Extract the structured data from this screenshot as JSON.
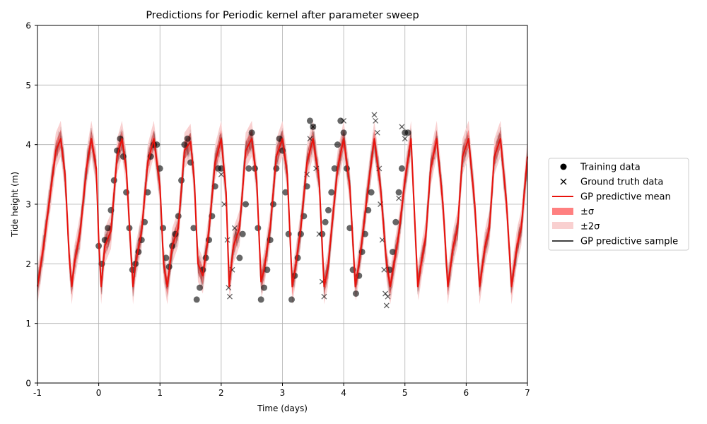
{
  "chart_data": {
    "type": "line",
    "title": "Predictions for Periodic kernel after parameter sweep",
    "xlabel": "Time (days)",
    "ylabel": "Tide height (m)",
    "xlim": [
      -1,
      7
    ],
    "ylim": [
      0,
      6
    ],
    "xticks": [
      -1,
      0,
      1,
      2,
      3,
      4,
      5,
      6,
      7
    ],
    "yticks": [
      0,
      1,
      2,
      3,
      4,
      5,
      6
    ],
    "grid": true,
    "legend_position": "right, outside plot",
    "legend": [
      "Training data",
      "Ground truth data",
      "GP predictive mean",
      "±σ",
      "±2σ",
      "GP predictive sample"
    ],
    "colors": {
      "mean": "#e8120c",
      "sigma1": "#ff8080",
      "sigma2": "#f9d0d0",
      "training": "#000000",
      "ground_truth": "#000000",
      "sample": "#000000",
      "grid": "#b0b0b0"
    },
    "series": [
      {
        "name": "GP predictive mean",
        "style": "line",
        "description": "periodic, period ~0.515 days, peaks 4.1, troughs 1.62",
        "x": [
          -1.0,
          -0.9,
          -0.8,
          -0.7,
          -0.62,
          -0.55,
          -0.48,
          -0.44,
          -0.4,
          -0.3,
          -0.2,
          -0.12,
          -0.04,
          0.0,
          0.04,
          0.1,
          0.2,
          0.3,
          0.38,
          0.45,
          0.52,
          0.56,
          0.6,
          0.7,
          0.8,
          0.9,
          1.0,
          1.06,
          1.12,
          1.2,
          1.3,
          1.4,
          1.5,
          1.56,
          1.62,
          1.7,
          1.8,
          1.9,
          2.0,
          2.08,
          2.13,
          2.2,
          2.3,
          2.4,
          2.5,
          2.58,
          2.65,
          2.7,
          2.8,
          2.9,
          3.0,
          3.08,
          3.16,
          3.22,
          3.3,
          3.4,
          3.5,
          3.6,
          3.68,
          3.74,
          3.8,
          3.9,
          4.0,
          4.1,
          4.19,
          4.25,
          4.3,
          4.4,
          4.5,
          4.6,
          4.7,
          4.76,
          4.82,
          4.9,
          5.0,
          5.1,
          5.21,
          5.28,
          5.34,
          5.42,
          5.52,
          5.62,
          5.7,
          5.79,
          5.86,
          5.94,
          6.04,
          6.14,
          6.22,
          6.31,
          6.38,
          6.46,
          6.56,
          6.66,
          6.74,
          6.83,
          6.9,
          7.0
        ],
        "y": [
          1.62,
          2.3,
          3.1,
          3.9,
          4.1,
          3.5,
          2.1,
          1.62,
          2.0,
          2.55,
          3.6,
          4.1,
          3.6,
          2.4,
          1.62,
          2.3,
          2.55,
          3.8,
          4.1,
          3.6,
          2.3,
          1.62,
          2.0,
          2.55,
          3.7,
          4.1,
          3.3,
          2.0,
          1.62,
          2.3,
          2.6,
          3.9,
          4.05,
          3.4,
          2.0,
          1.8,
          2.55,
          3.7,
          4.1,
          3.2,
          1.62,
          2.3,
          2.6,
          3.9,
          4.1,
          3.4,
          1.7,
          1.9,
          2.6,
          3.8,
          4.1,
          3.5,
          1.62,
          2.0,
          2.6,
          3.7,
          4.1,
          3.4,
          1.62,
          1.9,
          2.55,
          3.6,
          4.1,
          3.3,
          1.62,
          2.0,
          2.4,
          3.3,
          4.1,
          3.3,
          2.0,
          1.62,
          2.0,
          2.5,
          3.4,
          4.1,
          1.62,
          2.1,
          2.45,
          3.6,
          4.1,
          3.0,
          1.62,
          2.3,
          2.6,
          3.8,
          4.1,
          3.0,
          1.62,
          2.3,
          2.6,
          3.8,
          4.1,
          3.0,
          1.62,
          2.3,
          2.6,
          3.8
        ]
      },
      {
        "name": "Training data",
        "style": "marker-circle",
        "description": "dense dots in segments between x=0 and x=5.05",
        "x": [
          0.0,
          0.05,
          0.1,
          0.15,
          0.2,
          0.25,
          0.3,
          0.35,
          0.4,
          0.45,
          0.5,
          0.55,
          0.6,
          0.65,
          0.7,
          0.75,
          0.8,
          0.85,
          0.9,
          0.95,
          1.0,
          1.05,
          1.1,
          1.15,
          1.2,
          1.25,
          1.3,
          1.35,
          1.4,
          1.45,
          1.5,
          1.55,
          1.6,
          1.65,
          1.7,
          1.75,
          1.8,
          1.85,
          1.9,
          1.95,
          2.0,
          2.3,
          2.35,
          2.4,
          2.45,
          2.5,
          2.55,
          2.6,
          2.65,
          2.7,
          2.75,
          2.8,
          2.85,
          2.9,
          2.95,
          3.0,
          3.05,
          3.1,
          3.15,
          3.2,
          3.25,
          3.3,
          3.35,
          3.4,
          3.45,
          3.5,
          3.65,
          3.7,
          3.75,
          3.8,
          3.85,
          3.9,
          3.95,
          4.0,
          4.05,
          4.1,
          4.15,
          4.2,
          4.25,
          4.3,
          4.35,
          4.4,
          4.45,
          4.75,
          4.8,
          4.85,
          4.9,
          4.95,
          5.0,
          5.05
        ],
        "y": [
          2.3,
          2.0,
          2.4,
          2.6,
          2.9,
          3.4,
          3.9,
          4.1,
          3.8,
          3.2,
          2.6,
          1.9,
          2.0,
          2.2,
          2.4,
          2.7,
          3.2,
          3.8,
          4.0,
          4.0,
          3.6,
          2.6,
          2.1,
          1.95,
          2.3,
          2.5,
          2.8,
          3.4,
          4.0,
          4.1,
          3.7,
          2.6,
          1.4,
          1.6,
          1.9,
          2.1,
          2.4,
          2.8,
          3.3,
          3.6,
          3.6,
          2.1,
          2.5,
          3.0,
          3.6,
          4.2,
          3.6,
          2.6,
          1.4,
          1.6,
          1.9,
          2.4,
          3.0,
          3.6,
          4.1,
          3.9,
          3.2,
          2.5,
          1.4,
          1.8,
          2.1,
          2.5,
          2.8,
          3.3,
          4.4,
          4.3,
          2.5,
          2.7,
          2.9,
          3.2,
          3.6,
          4.0,
          4.4,
          4.2,
          3.6,
          2.6,
          1.9,
          1.5,
          1.8,
          2.2,
          2.5,
          2.9,
          3.2,
          1.9,
          2.2,
          2.7,
          3.2,
          3.6,
          4.2,
          4.2
        ]
      },
      {
        "name": "Ground truth data",
        "style": "marker-x",
        "description": "x markers in gaps and after 3.4 until 5.0",
        "x": [
          2.0,
          2.05,
          2.1,
          2.12,
          2.14,
          2.18,
          2.22,
          3.4,
          3.45,
          3.5,
          3.55,
          3.6,
          3.65,
          3.68,
          4.0,
          4.5,
          4.52,
          4.55,
          4.58,
          4.6,
          4.63,
          4.66,
          4.68,
          4.7,
          4.72,
          4.9,
          4.95,
          5.0
        ],
        "y": [
          3.5,
          3.0,
          2.4,
          1.6,
          1.45,
          1.9,
          2.6,
          3.5,
          4.1,
          4.3,
          3.6,
          2.5,
          1.7,
          1.45,
          4.4,
          4.5,
          4.4,
          4.2,
          3.6,
          3.0,
          2.4,
          1.9,
          1.5,
          1.3,
          1.45,
          3.1,
          4.3,
          4.1
        ]
      }
    ]
  }
}
